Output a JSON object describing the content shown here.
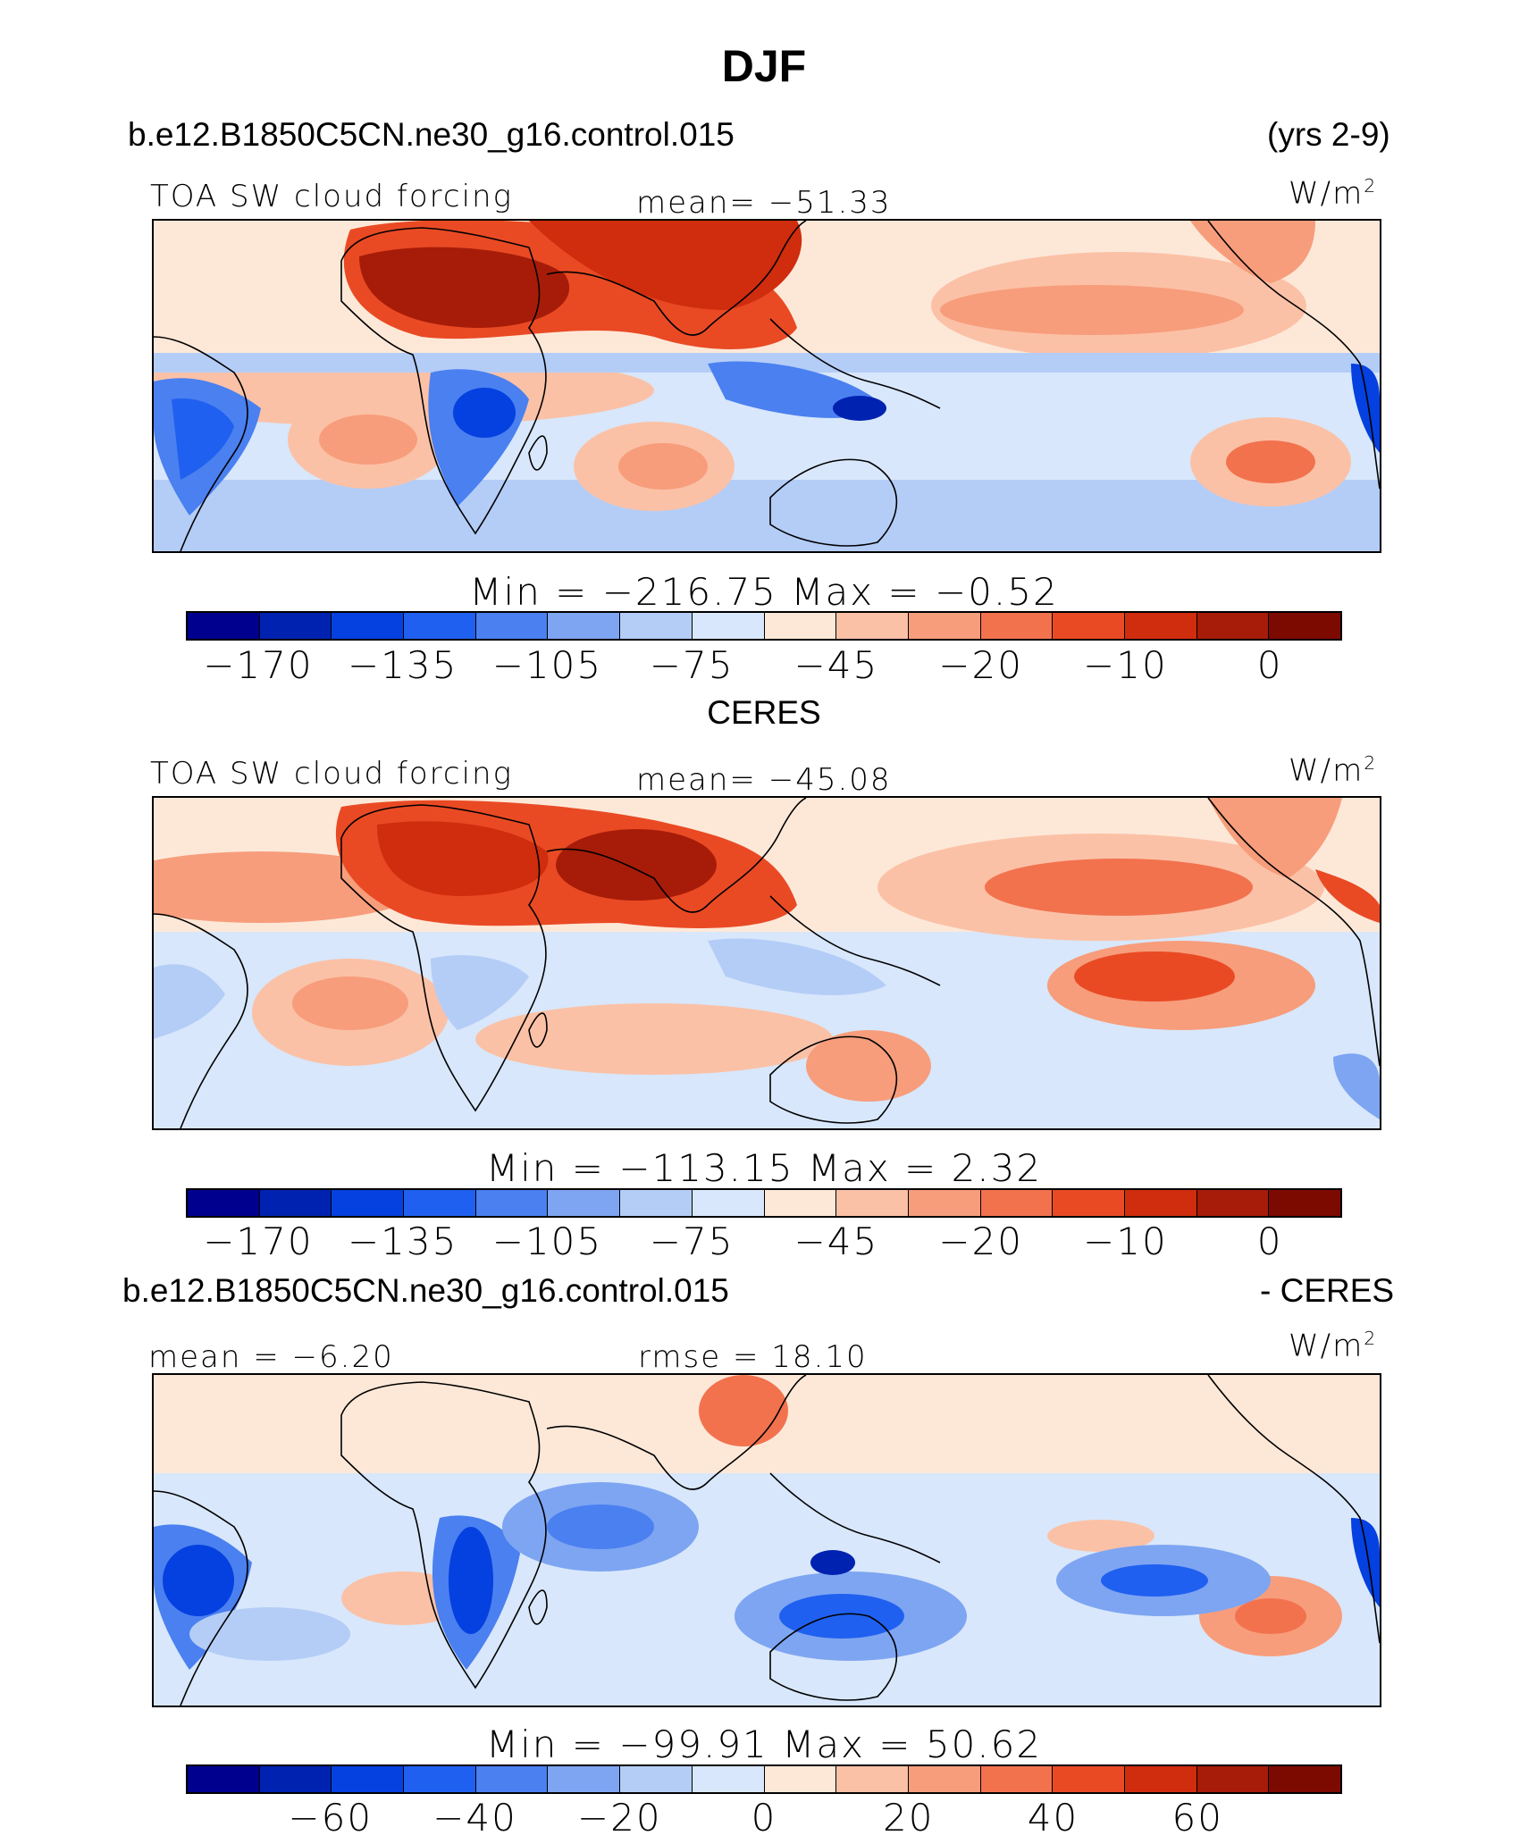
{
  "title": "DJF",
  "colors": {
    "main_scale": [
      "#00008f",
      "#0022b0",
      "#0540e0",
      "#2060f0",
      "#4a80f0",
      "#7ea5f2",
      "#b4cdf7",
      "#d8e7fb",
      "#fde8d8",
      "#fbc1a6",
      "#f79d7b",
      "#f2724e",
      "#e94a24",
      "#d02c0e",
      "#a71c08",
      "#7d0a00"
    ],
    "diff_scale": [
      "#00008f",
      "#0022b0",
      "#0540e0",
      "#2060f0",
      "#4a80f0",
      "#7ea5f2",
      "#b4cdf7",
      "#d8e7fb",
      "#fde8d8",
      "#fbc1a6",
      "#f79d7b",
      "#f2724e",
      "#e94a24",
      "#d02c0e",
      "#a71c08",
      "#7d0a00"
    ]
  },
  "chart_data": [
    {
      "type": "heatmap",
      "case_label": "b.e12.B1850C5CN.ne30_g16.control.015",
      "years_label": "(yrs 2-9)",
      "variable": "TOA SW cloud forcing",
      "mean_label": "mean=",
      "mean": "−51.33",
      "units": "W/m",
      "units_exp": "2",
      "min_label": "Min  =",
      "min": "−216.75",
      "max_label": "Max  =",
      "max": "−0.52",
      "colorbar_ticks": [
        "−170",
        "−135",
        "−105",
        "−75",
        "−45",
        "−20",
        "−10",
        "0"
      ]
    },
    {
      "type": "heatmap",
      "case_label": "CERES",
      "variable": "TOA SW cloud forcing",
      "mean_label": "mean=",
      "mean": "−45.08",
      "units": "W/m",
      "units_exp": "2",
      "min_label": "Min  =",
      "min": "−113.15",
      "max_label": "Max  =",
      "max": "2.32",
      "colorbar_ticks": [
        "−170",
        "−135",
        "−105",
        "−75",
        "−45",
        "−20",
        "−10",
        "0"
      ]
    },
    {
      "type": "heatmap",
      "case_label": "b.e12.B1850C5CN.ne30_g16.control.015",
      "diff_label": "- CERES",
      "mean_label": "mean  =",
      "mean": "−6.20",
      "rmse_label": "rmse  =",
      "rmse": "18.10",
      "units": "W/m",
      "units_exp": "2",
      "min_label": "Min  =",
      "min": "−99.91",
      "max_label": "Max  =",
      "max": "50.62",
      "colorbar_ticks": [
        "−60",
        "−40",
        "−20",
        "0",
        "20",
        "40",
        "60"
      ]
    }
  ]
}
